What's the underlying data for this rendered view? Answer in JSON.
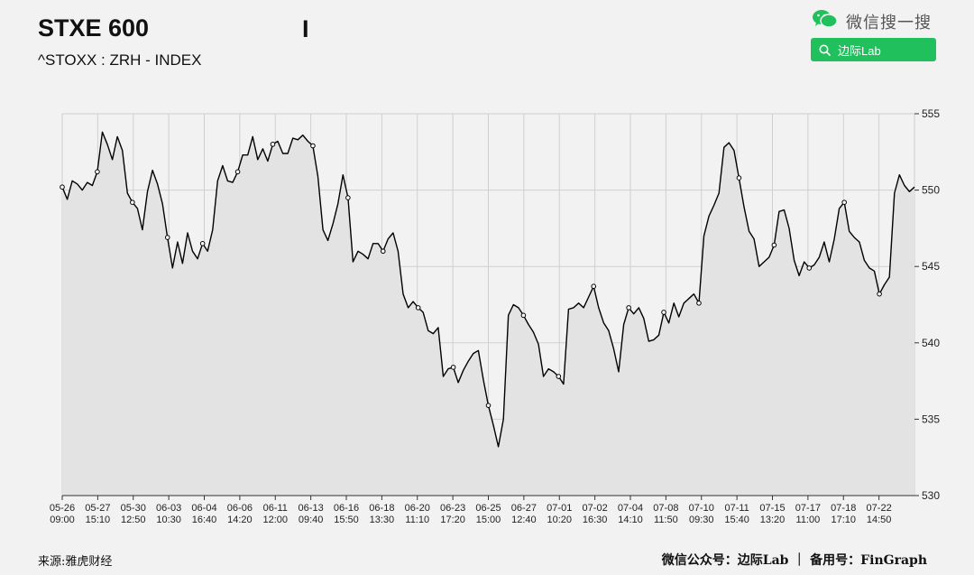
{
  "header": {
    "title": "STXE 600",
    "cursor_glyph": "I",
    "subtitle": "^STOXX : ZRH - INDEX"
  },
  "wechat": {
    "icon": "wechat-icon",
    "label": "微信搜一搜",
    "search_text": "边际Lab",
    "accent": "#20c15c"
  },
  "footer": {
    "source": "来源:雅虎财经",
    "credit": "微信公众号：边际Lab ｜ 备用号：FinGraph"
  },
  "chart_data": {
    "type": "area",
    "title": "STXE 600",
    "subtitle": "^STOXX : ZRH - INDEX",
    "ylim": [
      530,
      555
    ],
    "yticks": [
      530,
      535,
      540,
      545,
      550,
      555
    ],
    "y_axis_side": "right",
    "grid": true,
    "fill_color": "#e3e3e3",
    "line_color": "#000000",
    "xticks": [
      {
        "date": "05-26",
        "time": "09:00"
      },
      {
        "date": "05-27",
        "time": "15:10"
      },
      {
        "date": "05-30",
        "time": "12:50"
      },
      {
        "date": "06-03",
        "time": "10:30"
      },
      {
        "date": "06-04",
        "time": "16:40"
      },
      {
        "date": "06-06",
        "time": "14:20"
      },
      {
        "date": "06-11",
        "time": "12:00"
      },
      {
        "date": "06-13",
        "time": "09:40"
      },
      {
        "date": "06-16",
        "time": "15:50"
      },
      {
        "date": "06-18",
        "time": "13:30"
      },
      {
        "date": "06-20",
        "time": "11:10"
      },
      {
        "date": "06-23",
        "time": "17:20"
      },
      {
        "date": "06-25",
        "time": "15:00"
      },
      {
        "date": "06-27",
        "time": "12:40"
      },
      {
        "date": "07-01",
        "time": "10:20"
      },
      {
        "date": "07-02",
        "time": "16:30"
      },
      {
        "date": "07-04",
        "time": "14:10"
      },
      {
        "date": "07-08",
        "time": "11:50"
      },
      {
        "date": "07-10",
        "time": "09:30"
      },
      {
        "date": "07-11",
        "time": "15:40"
      },
      {
        "date": "07-15",
        "time": "13:20"
      },
      {
        "date": "07-17",
        "time": "11:00"
      },
      {
        "date": "07-18",
        "time": "17:10"
      },
      {
        "date": "07-22",
        "time": "14:50"
      }
    ],
    "series": [
      {
        "values": [
          [
            0,
            550.2
          ],
          [
            0.3,
            549.4
          ],
          [
            0.6,
            550.6
          ],
          [
            0.9,
            550.4
          ],
          [
            1.2,
            550.0
          ],
          [
            1.5,
            550.5
          ],
          [
            1.8,
            550.3
          ],
          [
            2.1,
            551.2
          ],
          [
            2.4,
            553.8
          ],
          [
            2.7,
            553.0
          ],
          [
            3.0,
            552.0
          ],
          [
            3.3,
            553.5
          ],
          [
            3.6,
            552.6
          ],
          [
            3.9,
            549.8
          ],
          [
            4.2,
            549.2
          ],
          [
            4.5,
            548.8
          ],
          [
            4.8,
            547.4
          ],
          [
            5.1,
            549.9
          ],
          [
            5.4,
            551.3
          ],
          [
            5.7,
            550.4
          ],
          [
            6.0,
            549.1
          ],
          [
            6.3,
            546.9
          ],
          [
            6.6,
            544.9
          ],
          [
            6.9,
            546.6
          ],
          [
            7.2,
            545.2
          ],
          [
            7.5,
            547.2
          ],
          [
            7.8,
            546.0
          ],
          [
            8.1,
            545.5
          ],
          [
            8.4,
            546.5
          ],
          [
            8.7,
            546.0
          ],
          [
            9.0,
            547.4
          ],
          [
            9.3,
            550.6
          ],
          [
            9.6,
            551.6
          ],
          [
            9.9,
            550.6
          ],
          [
            10.2,
            550.5
          ],
          [
            10.5,
            551.2
          ],
          [
            10.8,
            552.3
          ],
          [
            11.1,
            552.3
          ],
          [
            11.4,
            553.5
          ],
          [
            11.7,
            552.0
          ],
          [
            12.0,
            552.7
          ],
          [
            12.3,
            551.9
          ],
          [
            12.6,
            553.0
          ],
          [
            12.9,
            553.2
          ],
          [
            13.2,
            552.4
          ],
          [
            13.5,
            552.4
          ],
          [
            13.8,
            553.4
          ],
          [
            14.1,
            553.3
          ],
          [
            14.4,
            553.6
          ],
          [
            14.7,
            553.2
          ],
          [
            15.0,
            552.9
          ],
          [
            15.3,
            550.9
          ],
          [
            15.6,
            547.4
          ],
          [
            15.9,
            546.7
          ],
          [
            16.2,
            547.8
          ],
          [
            16.5,
            549.1
          ],
          [
            16.8,
            551.0
          ],
          [
            17.1,
            549.5
          ],
          [
            17.4,
            545.3
          ],
          [
            17.7,
            546.0
          ],
          [
            18.0,
            545.8
          ],
          [
            18.3,
            545.5
          ],
          [
            18.6,
            546.5
          ],
          [
            18.9,
            546.5
          ],
          [
            19.2,
            546.0
          ],
          [
            19.5,
            546.8
          ],
          [
            19.8,
            547.2
          ],
          [
            20.1,
            546.0
          ],
          [
            20.4,
            543.2
          ],
          [
            20.7,
            542.3
          ],
          [
            21.0,
            542.7
          ],
          [
            21.3,
            542.3
          ],
          [
            21.6,
            542.0
          ],
          [
            21.9,
            540.8
          ],
          [
            22.2,
            540.6
          ],
          [
            22.5,
            541.0
          ],
          [
            22.8,
            537.8
          ],
          [
            23.1,
            538.3
          ],
          [
            23.4,
            538.4
          ],
          [
            23.7,
            537.4
          ],
          [
            24.0,
            538.2
          ],
          [
            24.3,
            538.8
          ],
          [
            24.6,
            539.3
          ],
          [
            24.9,
            539.5
          ],
          [
            25.2,
            537.6
          ],
          [
            25.5,
            535.9
          ],
          [
            25.8,
            534.6
          ],
          [
            26.1,
            533.2
          ],
          [
            26.4,
            535.0
          ],
          [
            26.7,
            541.8
          ],
          [
            27.0,
            542.5
          ],
          [
            27.3,
            542.3
          ],
          [
            27.6,
            541.8
          ],
          [
            27.9,
            541.2
          ],
          [
            28.2,
            540.7
          ],
          [
            28.5,
            539.9
          ],
          [
            28.8,
            537.8
          ],
          [
            29.1,
            538.3
          ],
          [
            29.4,
            538.1
          ],
          [
            29.7,
            537.8
          ],
          [
            30.0,
            537.3
          ],
          [
            30.3,
            542.2
          ],
          [
            30.6,
            542.3
          ],
          [
            30.9,
            542.6
          ],
          [
            31.2,
            542.3
          ],
          [
            31.5,
            543.0
          ],
          [
            31.8,
            543.7
          ],
          [
            32.1,
            542.3
          ],
          [
            32.4,
            541.3
          ],
          [
            32.7,
            540.8
          ],
          [
            33.0,
            539.6
          ],
          [
            33.3,
            538.1
          ],
          [
            33.6,
            541.2
          ],
          [
            33.9,
            542.3
          ],
          [
            34.2,
            541.9
          ],
          [
            34.5,
            542.3
          ],
          [
            34.8,
            541.6
          ],
          [
            35.1,
            540.1
          ],
          [
            35.4,
            540.2
          ],
          [
            35.7,
            540.5
          ],
          [
            36.0,
            542.0
          ],
          [
            36.3,
            541.3
          ],
          [
            36.6,
            542.6
          ],
          [
            36.9,
            541.7
          ],
          [
            37.2,
            542.6
          ],
          [
            37.5,
            542.9
          ],
          [
            37.8,
            543.2
          ],
          [
            38.1,
            542.6
          ],
          [
            38.4,
            547.0
          ],
          [
            38.7,
            548.3
          ],
          [
            39.0,
            549.0
          ],
          [
            39.3,
            549.8
          ],
          [
            39.6,
            552.8
          ],
          [
            39.9,
            553.1
          ],
          [
            40.2,
            552.6
          ],
          [
            40.5,
            550.8
          ],
          [
            40.8,
            548.9
          ],
          [
            41.1,
            547.3
          ],
          [
            41.4,
            546.8
          ],
          [
            41.7,
            545.0
          ],
          [
            42.0,
            545.3
          ],
          [
            42.3,
            545.6
          ],
          [
            42.6,
            546.4
          ],
          [
            42.9,
            548.6
          ],
          [
            43.2,
            548.7
          ],
          [
            43.5,
            547.5
          ],
          [
            43.8,
            545.4
          ],
          [
            44.1,
            544.4
          ],
          [
            44.4,
            545.3
          ],
          [
            44.7,
            544.9
          ],
          [
            45.0,
            545.1
          ],
          [
            45.3,
            545.6
          ],
          [
            45.6,
            546.6
          ],
          [
            45.9,
            545.3
          ],
          [
            46.2,
            546.8
          ],
          [
            46.5,
            548.8
          ],
          [
            46.8,
            549.2
          ],
          [
            47.1,
            547.3
          ],
          [
            47.4,
            546.9
          ],
          [
            47.7,
            546.6
          ],
          [
            48.0,
            545.4
          ],
          [
            48.3,
            544.9
          ],
          [
            48.6,
            544.7
          ],
          [
            48.9,
            543.2
          ],
          [
            49.2,
            543.8
          ],
          [
            49.5,
            544.3
          ],
          [
            49.8,
            549.8
          ],
          [
            50.1,
            551.0
          ],
          [
            50.4,
            550.3
          ],
          [
            50.7,
            549.9
          ],
          [
            51.0,
            550.2
          ]
        ]
      }
    ]
  }
}
